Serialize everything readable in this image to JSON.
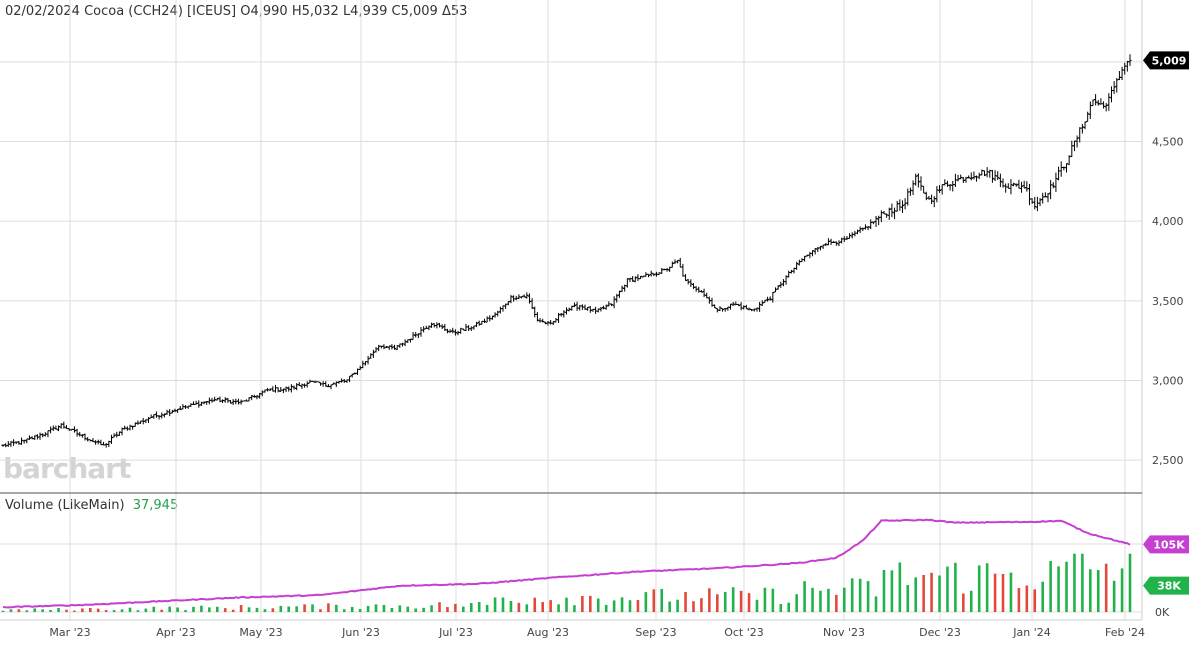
{
  "header": {
    "date": "02/02/2024",
    "name": "Cocoa (CCH24)",
    "exchange": "[ICEUS]",
    "open": "O4,990",
    "high": "H5,032",
    "low": "L4,939",
    "close": "C5,009",
    "change": "Δ53"
  },
  "logo_text": "barchart",
  "volume_panel": {
    "label": "Volume",
    "sub_label": "(LikeMain)",
    "value": "37,945"
  },
  "colors": {
    "price_bar": "#000000",
    "grid": "#dddddd",
    "volume_up": "#22b24c",
    "volume_down": "#e2493b",
    "volume_avg": "#c53fd1",
    "last_price_tag": "#000000",
    "avg_tag": "#c53fd1",
    "volume_tag": "#22b24c"
  },
  "chart_data": [
    {
      "type": "ohlc",
      "title": "",
      "x_labels": [
        "Mar '23",
        "Apr '23",
        "May '23",
        "Jun '23",
        "Jul '23",
        "Aug '23",
        "Sep '23",
        "Oct '23",
        "Nov '23",
        "Dec '23",
        "Jan '24",
        "Feb '24"
      ],
      "y_ticks": [
        "2,500",
        "3,000",
        "3,500",
        "4,000",
        "4,500"
      ],
      "y_tick_values": [
        2500,
        3000,
        3500,
        4000,
        4500
      ],
      "y_range": [
        2300,
        5250
      ],
      "grid": true,
      "last_price_label": "5,009",
      "last_price": 5009,
      "close_anchors": [
        [
          0,
          2590
        ],
        [
          8,
          2620
        ],
        [
          16,
          2670
        ],
        [
          22,
          2720
        ],
        [
          30,
          2650
        ],
        [
          38,
          2590
        ],
        [
          45,
          2690
        ],
        [
          56,
          2770
        ],
        [
          68,
          2830
        ],
        [
          80,
          2880
        ],
        [
          90,
          2860
        ],
        [
          100,
          2940
        ],
        [
          108,
          2950
        ],
        [
          116,
          2990
        ],
        [
          122,
          2970
        ],
        [
          130,
          3000
        ],
        [
          137,
          3120
        ],
        [
          142,
          3220
        ],
        [
          148,
          3200
        ],
        [
          156,
          3290
        ],
        [
          162,
          3360
        ],
        [
          170,
          3300
        ],
        [
          178,
          3340
        ],
        [
          186,
          3410
        ],
        [
          192,
          3520
        ],
        [
          198,
          3530
        ],
        [
          202,
          3380
        ],
        [
          207,
          3350
        ],
        [
          212,
          3440
        ],
        [
          218,
          3470
        ],
        [
          224,
          3430
        ],
        [
          230,
          3480
        ],
        [
          236,
          3630
        ],
        [
          242,
          3650
        ],
        [
          250,
          3690
        ],
        [
          255,
          3750
        ],
        [
          258,
          3620
        ],
        [
          264,
          3560
        ],
        [
          270,
          3440
        ],
        [
          276,
          3480
        ],
        [
          283,
          3440
        ],
        [
          290,
          3520
        ],
        [
          296,
          3650
        ],
        [
          302,
          3760
        ],
        [
          310,
          3860
        ],
        [
          318,
          3880
        ],
        [
          326,
          3960
        ],
        [
          334,
          4060
        ],
        [
          340,
          4100
        ],
        [
          345,
          4260
        ],
        [
          350,
          4130
        ],
        [
          356,
          4230
        ],
        [
          364,
          4280
        ],
        [
          372,
          4310
        ],
        [
          380,
          4220
        ],
        [
          386,
          4220
        ],
        [
          390,
          4100
        ],
        [
          396,
          4210
        ],
        [
          402,
          4380
        ],
        [
          408,
          4600
        ],
        [
          412,
          4760
        ],
        [
          416,
          4720
        ],
        [
          420,
          4830
        ],
        [
          424,
          4990
        ],
        [
          426,
          5009
        ]
      ],
      "volume": {
        "y_ticks": [
          "0K"
        ],
        "last_volume_label": "38K",
        "last_avg_label": "105K",
        "avg_anchors": [
          [
            0,
            0.05
          ],
          [
            30,
            0.075
          ],
          [
            60,
            0.115
          ],
          [
            90,
            0.155
          ],
          [
            120,
            0.18
          ],
          [
            150,
            0.28
          ],
          [
            180,
            0.3
          ],
          [
            210,
            0.37
          ],
          [
            240,
            0.43
          ],
          [
            270,
            0.465
          ],
          [
            300,
            0.52
          ],
          [
            315,
            0.575
          ],
          [
            325,
            0.76
          ],
          [
            332,
            0.97
          ],
          [
            350,
            0.98
          ],
          [
            360,
            0.95
          ],
          [
            390,
            0.96
          ],
          [
            400,
            0.97
          ],
          [
            410,
            0.84
          ],
          [
            426,
            0.72
          ]
        ]
      }
    }
  ]
}
